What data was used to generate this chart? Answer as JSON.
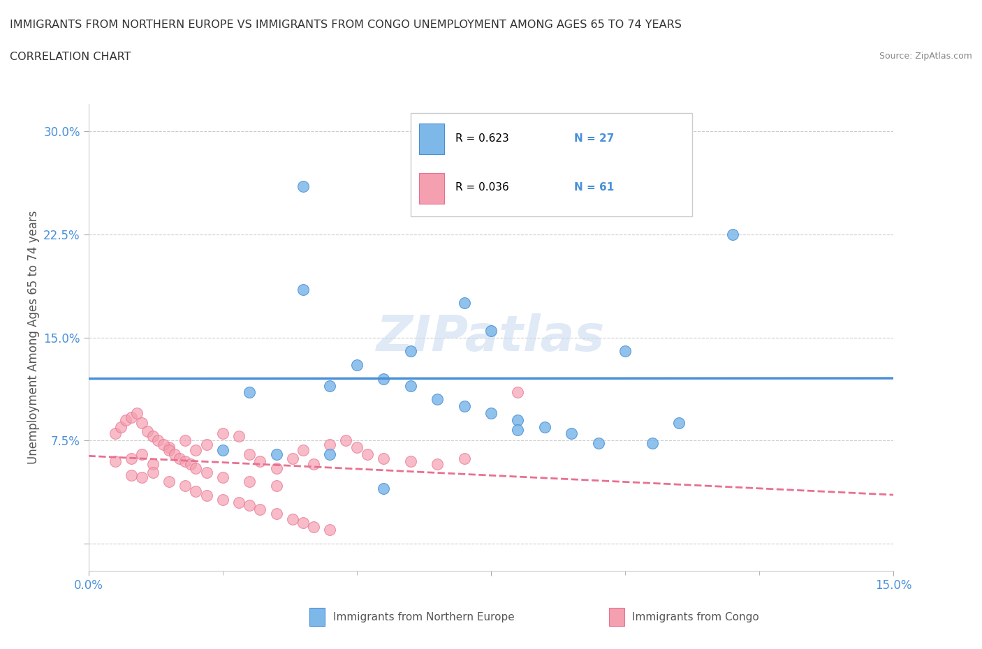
{
  "title_line1": "IMMIGRANTS FROM NORTHERN EUROPE VS IMMIGRANTS FROM CONGO UNEMPLOYMENT AMONG AGES 65 TO 74 YEARS",
  "title_line2": "CORRELATION CHART",
  "source_text": "Source: ZipAtlas.com",
  "ylabel": "Unemployment Among Ages 65 to 74 years",
  "xlim": [
    0.0,
    0.15
  ],
  "ylim": [
    -0.02,
    0.32
  ],
  "yticks": [
    0.0,
    0.075,
    0.15,
    0.225,
    0.3
  ],
  "ytick_labels": [
    "",
    "7.5%",
    "15.0%",
    "22.5%",
    "30.0%"
  ],
  "color_blue": "#7DB8E8",
  "color_blue_line": "#4A90D9",
  "color_pink": "#F4A0B0",
  "color_pink_line": "#E87090",
  "watermark": "ZIPatlas",
  "blue_scatter_x": [
    0.04,
    0.06,
    0.045,
    0.05,
    0.055,
    0.06,
    0.065,
    0.07,
    0.075,
    0.08,
    0.085,
    0.09,
    0.095,
    0.1,
    0.105,
    0.11,
    0.065,
    0.07,
    0.075,
    0.08,
    0.03,
    0.025,
    0.035,
    0.04,
    0.045,
    0.12,
    0.055
  ],
  "blue_scatter_y": [
    0.185,
    0.14,
    0.115,
    0.13,
    0.12,
    0.115,
    0.105,
    0.1,
    0.095,
    0.09,
    0.085,
    0.08,
    0.073,
    0.14,
    0.073,
    0.088,
    0.265,
    0.175,
    0.155,
    0.083,
    0.11,
    0.068,
    0.065,
    0.26,
    0.065,
    0.225,
    0.04
  ],
  "pink_scatter_x": [
    0.005,
    0.008,
    0.01,
    0.012,
    0.015,
    0.018,
    0.02,
    0.022,
    0.025,
    0.028,
    0.03,
    0.032,
    0.035,
    0.038,
    0.04,
    0.042,
    0.045,
    0.048,
    0.05,
    0.052,
    0.055,
    0.06,
    0.065,
    0.07,
    0.008,
    0.01,
    0.012,
    0.015,
    0.018,
    0.02,
    0.022,
    0.025,
    0.028,
    0.03,
    0.032,
    0.035,
    0.038,
    0.04,
    0.042,
    0.045,
    0.005,
    0.006,
    0.007,
    0.008,
    0.009,
    0.01,
    0.011,
    0.012,
    0.013,
    0.014,
    0.015,
    0.016,
    0.017,
    0.018,
    0.019,
    0.02,
    0.022,
    0.025,
    0.03,
    0.035,
    0.08
  ],
  "pink_scatter_y": [
    0.06,
    0.062,
    0.065,
    0.058,
    0.07,
    0.075,
    0.068,
    0.072,
    0.08,
    0.078,
    0.065,
    0.06,
    0.055,
    0.062,
    0.068,
    0.058,
    0.072,
    0.075,
    0.07,
    0.065,
    0.062,
    0.06,
    0.058,
    0.062,
    0.05,
    0.048,
    0.052,
    0.045,
    0.042,
    0.038,
    0.035,
    0.032,
    0.03,
    0.028,
    0.025,
    0.022,
    0.018,
    0.015,
    0.012,
    0.01,
    0.08,
    0.085,
    0.09,
    0.092,
    0.095,
    0.088,
    0.082,
    0.078,
    0.075,
    0.072,
    0.068,
    0.065,
    0.062,
    0.06,
    0.058,
    0.055,
    0.052,
    0.048,
    0.045,
    0.042,
    0.11
  ]
}
